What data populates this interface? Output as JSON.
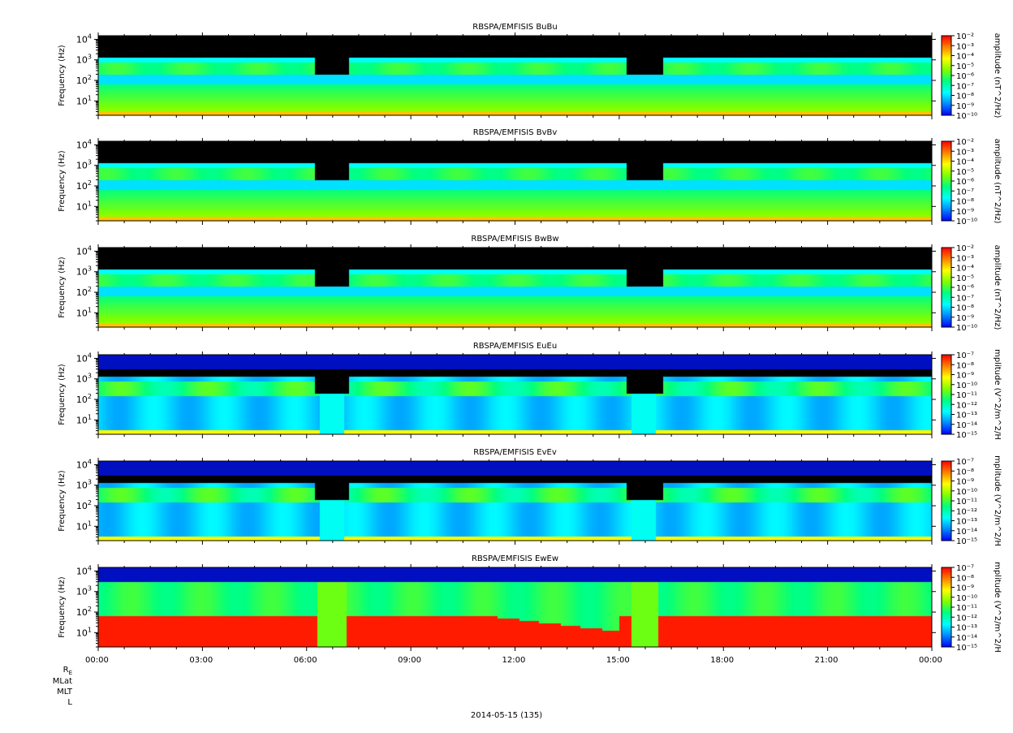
{
  "chart_data": [
    {
      "type": "heatmap",
      "title": "RBSPA/EMFISIS  BuBu",
      "ylabel": "Frequency (Hz)",
      "colorbar_label": "amplitude (nT^2/Hz)",
      "y_scale": "log",
      "ylim": [
        2,
        15000
      ],
      "y_ticks": [
        10,
        100,
        1000,
        10000
      ],
      "colorbar_ticks": [
        "10⁻²",
        "10⁻³",
        "10⁻⁴",
        "10⁻⁵",
        "10⁻⁶",
        "10⁻⁷",
        "10⁻⁸",
        "10⁻⁹",
        "10⁻¹⁰"
      ],
      "colorbar_range_log10": [
        -10,
        -2
      ]
    },
    {
      "type": "heatmap",
      "title": "RBSPA/EMFISIS  BvBv",
      "ylabel": "Frequency (Hz)",
      "colorbar_label": "amplitude (nT^2/Hz)",
      "y_scale": "log",
      "ylim": [
        2,
        15000
      ],
      "y_ticks": [
        10,
        100,
        1000,
        10000
      ],
      "colorbar_ticks": [
        "10⁻²",
        "10⁻³",
        "10⁻⁴",
        "10⁻⁵",
        "10⁻⁶",
        "10⁻⁷",
        "10⁻⁸",
        "10⁻⁹",
        "10⁻¹⁰"
      ],
      "colorbar_range_log10": [
        -10,
        -2
      ]
    },
    {
      "type": "heatmap",
      "title": "RBSPA/EMFISIS  BwBw",
      "ylabel": "Frequency (Hz)",
      "colorbar_label": "amplitude (nT^2/Hz)",
      "y_scale": "log",
      "ylim": [
        2,
        15000
      ],
      "y_ticks": [
        10,
        100,
        1000,
        10000
      ],
      "colorbar_ticks": [
        "10⁻²",
        "10⁻³",
        "10⁻⁴",
        "10⁻⁵",
        "10⁻⁶",
        "10⁻⁷",
        "10⁻⁸",
        "10⁻⁹",
        "10⁻¹⁰"
      ],
      "colorbar_range_log10": [
        -10,
        -2
      ]
    },
    {
      "type": "heatmap",
      "title": "RBSPA/EMFISIS  EuEu",
      "ylabel": "Frequency (Hz)",
      "colorbar_label": "mplitude (V^2/m^2/H",
      "y_scale": "log",
      "ylim": [
        2,
        15000
      ],
      "y_ticks": [
        10,
        100,
        1000,
        10000
      ],
      "colorbar_ticks": [
        "10⁻⁷",
        "10⁻⁸",
        "10⁻⁹",
        "10⁻¹⁰",
        "10⁻¹¹",
        "10⁻¹²",
        "10⁻¹³",
        "10⁻¹⁴",
        "10⁻¹⁵"
      ],
      "colorbar_range_log10": [
        -15,
        -7
      ]
    },
    {
      "type": "heatmap",
      "title": "RBSPA/EMFISIS  EvEv",
      "ylabel": "Frequency (Hz)",
      "colorbar_label": "mplitude (V^2/m^2/H",
      "y_scale": "log",
      "ylim": [
        2,
        15000
      ],
      "y_ticks": [
        10,
        100,
        1000,
        10000
      ],
      "colorbar_ticks": [
        "10⁻⁷",
        "10⁻⁸",
        "10⁻⁹",
        "10⁻¹⁰",
        "10⁻¹¹",
        "10⁻¹²",
        "10⁻¹³",
        "10⁻¹⁴",
        "10⁻¹⁵"
      ],
      "colorbar_range_log10": [
        -15,
        -7
      ]
    },
    {
      "type": "heatmap",
      "title": "RBSPA/EMFISIS  EwEw",
      "ylabel": "Frequency (Hz)",
      "colorbar_label": "mplitude (V^2/m^2/H",
      "y_scale": "log",
      "ylim": [
        2,
        15000
      ],
      "y_ticks": [
        10,
        100,
        1000,
        10000
      ],
      "colorbar_ticks": [
        "10⁻⁷",
        "10⁻⁸",
        "10⁻⁹",
        "10⁻¹⁰",
        "10⁻¹¹",
        "10⁻¹²",
        "10⁻¹³",
        "10⁻¹⁴",
        "10⁻¹⁵"
      ],
      "colorbar_range_log10": [
        -15,
        -7
      ]
    }
  ],
  "x_axis": {
    "tick_labels": [
      "00:00",
      "03:00",
      "06:00",
      "09:00",
      "12:00",
      "15:00",
      "18:00",
      "21:00",
      "00:00"
    ],
    "range_hours": [
      0,
      24
    ],
    "row_labels": [
      "RE",
      "MLat",
      "MLT",
      "L"
    ],
    "date_label": "2014-05-15 (135)"
  },
  "colors": {
    "background": "#ffffff",
    "colormap": [
      "#0000ff",
      "#0088ff",
      "#00ffff",
      "#00ff80",
      "#80ff00",
      "#ffff00",
      "#ff8000",
      "#ff0000"
    ],
    "above_range": "#000000"
  }
}
